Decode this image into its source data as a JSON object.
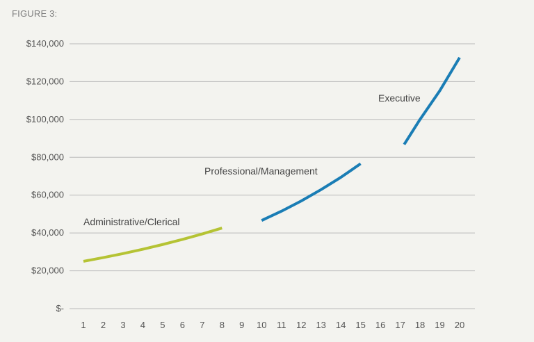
{
  "title": "FIGURE 3:",
  "chart_data": {
    "type": "line",
    "title": "FIGURE 3:",
    "xlabel": "",
    "ylabel": "",
    "x_ticks": [
      1,
      2,
      3,
      4,
      5,
      6,
      7,
      8,
      9,
      10,
      11,
      12,
      13,
      14,
      15,
      16,
      17,
      18,
      19,
      20
    ],
    "y_ticks": [
      0,
      20000,
      40000,
      60000,
      80000,
      100000,
      120000,
      140000
    ],
    "y_tick_labels": [
      "$-",
      "$20,000",
      "$40,000",
      "$60,000",
      "$80,000",
      "$100,000",
      "$120,000",
      "$140,000"
    ],
    "xlim": [
      0.5,
      20.5
    ],
    "ylim": [
      0,
      140000
    ],
    "grid": "horizontal",
    "legend": "none",
    "series": [
      {
        "name": "Administrative/Clerical",
        "color": "#b5c334",
        "x": [
          1,
          2,
          3,
          4,
          5,
          6,
          7,
          8
        ],
        "values": [
          25000,
          26980,
          29110,
          31410,
          33900,
          36580,
          39470,
          42600
        ]
      },
      {
        "name": "Professional/Management",
        "color": "#1a7db5",
        "x": [
          10,
          11,
          12,
          13,
          14,
          15
        ],
        "values": [
          46600,
          51500,
          56900,
          62900,
          69400,
          76600
        ]
      },
      {
        "name": "Executive",
        "color": "#1a7db5",
        "x": [
          17.2,
          18,
          19,
          20
        ],
        "values": [
          86800,
          100000,
          115200,
          132700
        ]
      }
    ]
  }
}
